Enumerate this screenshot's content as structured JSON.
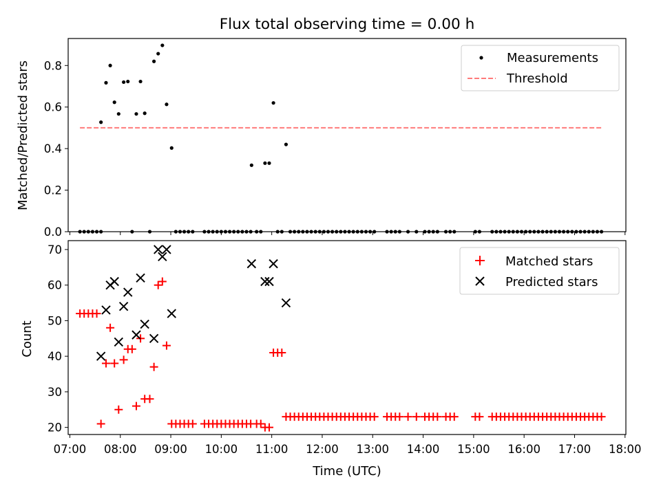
{
  "figure": {
    "title": "Flux total observing time = 0.00 h",
    "xlabel": "Time (UTC)"
  },
  "chart_data": [
    {
      "type": "scatter",
      "ylabel": "Matched/Predicted stars",
      "ylim": [
        0,
        0.93
      ],
      "xlim": [
        "06:58",
        "18:01"
      ],
      "yticks": [
        0.0,
        0.2,
        0.4,
        0.6,
        0.8
      ],
      "ytick_labels": [
        "0.0",
        "0.2",
        "0.4",
        "0.6",
        "0.8"
      ],
      "legend_position": "top-right",
      "series": [
        {
          "name": "Measurements",
          "marker": "dot",
          "color": "#000000",
          "points": [
            [
              "07:12",
              0
            ],
            [
              "07:17",
              0
            ],
            [
              "07:22",
              0
            ],
            [
              "07:27",
              0
            ],
            [
              "07:32",
              0
            ],
            [
              "07:37",
              0
            ],
            [
              "07:37",
              0.527
            ],
            [
              "07:43",
              0.717
            ],
            [
              "07:48",
              0.8
            ],
            [
              "07:53",
              0.623
            ],
            [
              "07:58",
              0.567
            ],
            [
              "08:04",
              0.72
            ],
            [
              "08:09",
              0.723
            ],
            [
              "08:14",
              0
            ],
            [
              "08:19",
              0.567
            ],
            [
              "08:24",
              0.723
            ],
            [
              "08:29",
              0.57
            ],
            [
              "08:35",
              0
            ],
            [
              "08:40",
              0.82
            ],
            [
              "08:45",
              0.857
            ],
            [
              "08:50",
              0.897
            ],
            [
              "08:55",
              0.613
            ],
            [
              "09:01",
              0.403
            ],
            [
              "09:06",
              0
            ],
            [
              "09:11",
              0
            ],
            [
              "09:16",
              0
            ],
            [
              "09:21",
              0
            ],
            [
              "09:26",
              0
            ],
            [
              "09:40",
              0
            ],
            [
              "09:45",
              0
            ],
            [
              "09:50",
              0
            ],
            [
              "09:55",
              0
            ],
            [
              "10:00",
              0
            ],
            [
              "10:05",
              0
            ],
            [
              "10:10",
              0
            ],
            [
              "10:15",
              0
            ],
            [
              "10:20",
              0
            ],
            [
              "10:25",
              0
            ],
            [
              "10:30",
              0
            ],
            [
              "10:35",
              0
            ],
            [
              "10:36",
              0.32
            ],
            [
              "10:42",
              0
            ],
            [
              "10:47",
              0
            ],
            [
              "10:52",
              0.33
            ],
            [
              "10:57",
              0.33
            ],
            [
              "11:02",
              0.62
            ],
            [
              "11:07",
              0
            ],
            [
              "11:12",
              0
            ],
            [
              "11:17",
              0.42
            ],
            [
              "11:22",
              0
            ],
            [
              "11:27",
              0
            ],
            [
              "11:32",
              0
            ],
            [
              "11:37",
              0
            ],
            [
              "11:42",
              0
            ],
            [
              "11:47",
              0
            ],
            [
              "11:52",
              0
            ],
            [
              "11:57",
              0
            ],
            [
              "12:02",
              0
            ],
            [
              "12:07",
              0
            ],
            [
              "12:12",
              0
            ],
            [
              "12:17",
              0
            ],
            [
              "12:22",
              0
            ],
            [
              "12:27",
              0
            ],
            [
              "12:32",
              0
            ],
            [
              "12:37",
              0
            ],
            [
              "12:42",
              0
            ],
            [
              "12:47",
              0
            ],
            [
              "12:52",
              0
            ],
            [
              "12:57",
              0
            ],
            [
              "13:02",
              0
            ],
            [
              "13:17",
              0
            ],
            [
              "13:22",
              0
            ],
            [
              "13:27",
              0
            ],
            [
              "13:32",
              0
            ],
            [
              "13:42",
              0
            ],
            [
              "13:52",
              0
            ],
            [
              "14:02",
              0
            ],
            [
              "14:07",
              0
            ],
            [
              "14:12",
              0
            ],
            [
              "14:17",
              0
            ],
            [
              "14:27",
              0
            ],
            [
              "14:32",
              0
            ],
            [
              "14:37",
              0
            ],
            [
              "15:02",
              0
            ],
            [
              "15:07",
              0
            ],
            [
              "15:22",
              0
            ],
            [
              "15:27",
              0
            ],
            [
              "15:32",
              0
            ],
            [
              "15:37",
              0
            ],
            [
              "15:42",
              0
            ],
            [
              "15:47",
              0
            ],
            [
              "15:52",
              0
            ],
            [
              "15:57",
              0
            ],
            [
              "16:02",
              0
            ],
            [
              "16:07",
              0
            ],
            [
              "16:12",
              0
            ],
            [
              "16:17",
              0
            ],
            [
              "16:22",
              0
            ],
            [
              "16:27",
              0
            ],
            [
              "16:32",
              0
            ],
            [
              "16:37",
              0
            ],
            [
              "16:42",
              0
            ],
            [
              "16:47",
              0
            ],
            [
              "16:52",
              0
            ],
            [
              "16:57",
              0
            ],
            [
              "17:02",
              0
            ],
            [
              "17:07",
              0
            ],
            [
              "17:12",
              0
            ],
            [
              "17:17",
              0
            ],
            [
              "17:22",
              0
            ],
            [
              "17:27",
              0
            ],
            [
              "17:32",
              0
            ]
          ]
        },
        {
          "name": "Threshold",
          "style": "dashed-line",
          "color": "#ff7a7a",
          "points": [
            [
              "07:12",
              0.5
            ],
            [
              "17:32",
              0.5
            ]
          ]
        }
      ]
    },
    {
      "type": "scatter",
      "ylabel": "Count",
      "ylim": [
        18,
        72.5
      ],
      "xlim": [
        "06:58",
        "18:01"
      ],
      "yticks": [
        20,
        30,
        40,
        50,
        60,
        70
      ],
      "ytick_labels": [
        "20",
        "30",
        "40",
        "50",
        "60",
        "70"
      ],
      "xticks": [
        "07:00",
        "08:00",
        "09:00",
        "10:00",
        "11:00",
        "12:00",
        "13:00",
        "14:00",
        "15:00",
        "16:00",
        "17:00",
        "18:00"
      ],
      "legend_position": "top-right",
      "series": [
        {
          "name": "Matched stars",
          "marker": "plus",
          "color": "#ff0000",
          "points": [
            [
              "07:12",
              52
            ],
            [
              "07:17",
              52
            ],
            [
              "07:22",
              52
            ],
            [
              "07:27",
              52
            ],
            [
              "07:32",
              52
            ],
            [
              "07:37",
              21
            ],
            [
              "07:43",
              38
            ],
            [
              "07:48",
              48
            ],
            [
              "07:53",
              38
            ],
            [
              "07:58",
              25
            ],
            [
              "08:04",
              39
            ],
            [
              "08:09",
              42
            ],
            [
              "08:14",
              42
            ],
            [
              "08:19",
              26
            ],
            [
              "08:24",
              45
            ],
            [
              "08:29",
              28
            ],
            [
              "08:35",
              28
            ],
            [
              "08:40",
              37
            ],
            [
              "08:45",
              60
            ],
            [
              "08:50",
              61
            ],
            [
              "08:55",
              43
            ],
            [
              "09:01",
              21
            ],
            [
              "09:06",
              21
            ],
            [
              "09:11",
              21
            ],
            [
              "09:16",
              21
            ],
            [
              "09:21",
              21
            ],
            [
              "09:26",
              21
            ],
            [
              "09:40",
              21
            ],
            [
              "09:45",
              21
            ],
            [
              "09:50",
              21
            ],
            [
              "09:55",
              21
            ],
            [
              "10:00",
              21
            ],
            [
              "10:05",
              21
            ],
            [
              "10:10",
              21
            ],
            [
              "10:15",
              21
            ],
            [
              "10:20",
              21
            ],
            [
              "10:25",
              21
            ],
            [
              "10:30",
              21
            ],
            [
              "10:35",
              21
            ],
            [
              "10:42",
              21
            ],
            [
              "10:47",
              21
            ],
            [
              "10:52",
              20
            ],
            [
              "10:57",
              20
            ],
            [
              "11:02",
              41
            ],
            [
              "11:07",
              41
            ],
            [
              "11:12",
              41
            ],
            [
              "11:17",
              23
            ],
            [
              "11:22",
              23
            ],
            [
              "11:27",
              23
            ],
            [
              "11:32",
              23
            ],
            [
              "11:37",
              23
            ],
            [
              "11:42",
              23
            ],
            [
              "11:47",
              23
            ],
            [
              "11:52",
              23
            ],
            [
              "11:57",
              23
            ],
            [
              "12:02",
              23
            ],
            [
              "12:07",
              23
            ],
            [
              "12:12",
              23
            ],
            [
              "12:17",
              23
            ],
            [
              "12:22",
              23
            ],
            [
              "12:27",
              23
            ],
            [
              "12:32",
              23
            ],
            [
              "12:37",
              23
            ],
            [
              "12:42",
              23
            ],
            [
              "12:47",
              23
            ],
            [
              "12:52",
              23
            ],
            [
              "12:57",
              23
            ],
            [
              "13:02",
              23
            ],
            [
              "13:17",
              23
            ],
            [
              "13:22",
              23
            ],
            [
              "13:27",
              23
            ],
            [
              "13:32",
              23
            ],
            [
              "13:42",
              23
            ],
            [
              "13:52",
              23
            ],
            [
              "14:02",
              23
            ],
            [
              "14:07",
              23
            ],
            [
              "14:12",
              23
            ],
            [
              "14:17",
              23
            ],
            [
              "14:27",
              23
            ],
            [
              "14:32",
              23
            ],
            [
              "14:37",
              23
            ],
            [
              "15:02",
              23
            ],
            [
              "15:07",
              23
            ],
            [
              "15:22",
              23
            ],
            [
              "15:27",
              23
            ],
            [
              "15:32",
              23
            ],
            [
              "15:37",
              23
            ],
            [
              "15:42",
              23
            ],
            [
              "15:47",
              23
            ],
            [
              "15:52",
              23
            ],
            [
              "15:57",
              23
            ],
            [
              "16:02",
              23
            ],
            [
              "16:07",
              23
            ],
            [
              "16:12",
              23
            ],
            [
              "16:17",
              23
            ],
            [
              "16:22",
              23
            ],
            [
              "16:27",
              23
            ],
            [
              "16:32",
              23
            ],
            [
              "16:37",
              23
            ],
            [
              "16:42",
              23
            ],
            [
              "16:47",
              23
            ],
            [
              "16:52",
              23
            ],
            [
              "16:57",
              23
            ],
            [
              "17:02",
              23
            ],
            [
              "17:07",
              23
            ],
            [
              "17:12",
              23
            ],
            [
              "17:17",
              23
            ],
            [
              "17:22",
              23
            ],
            [
              "17:27",
              23
            ],
            [
              "17:32",
              23
            ]
          ]
        },
        {
          "name": "Predicted stars",
          "marker": "x",
          "color": "#000000",
          "points": [
            [
              "07:37",
              40
            ],
            [
              "07:43",
              53
            ],
            [
              "07:48",
              60
            ],
            [
              "07:53",
              61
            ],
            [
              "07:58",
              44
            ],
            [
              "08:04",
              54
            ],
            [
              "08:09",
              58
            ],
            [
              "08:19",
              46
            ],
            [
              "08:24",
              62
            ],
            [
              "08:29",
              49
            ],
            [
              "08:40",
              45
            ],
            [
              "08:45",
              70
            ],
            [
              "08:50",
              68
            ],
            [
              "08:55",
              70
            ],
            [
              "09:01",
              52
            ],
            [
              "10:36",
              66
            ],
            [
              "10:52",
              61
            ],
            [
              "10:57",
              61
            ],
            [
              "11:02",
              66
            ],
            [
              "11:17",
              55
            ]
          ]
        }
      ]
    }
  ]
}
